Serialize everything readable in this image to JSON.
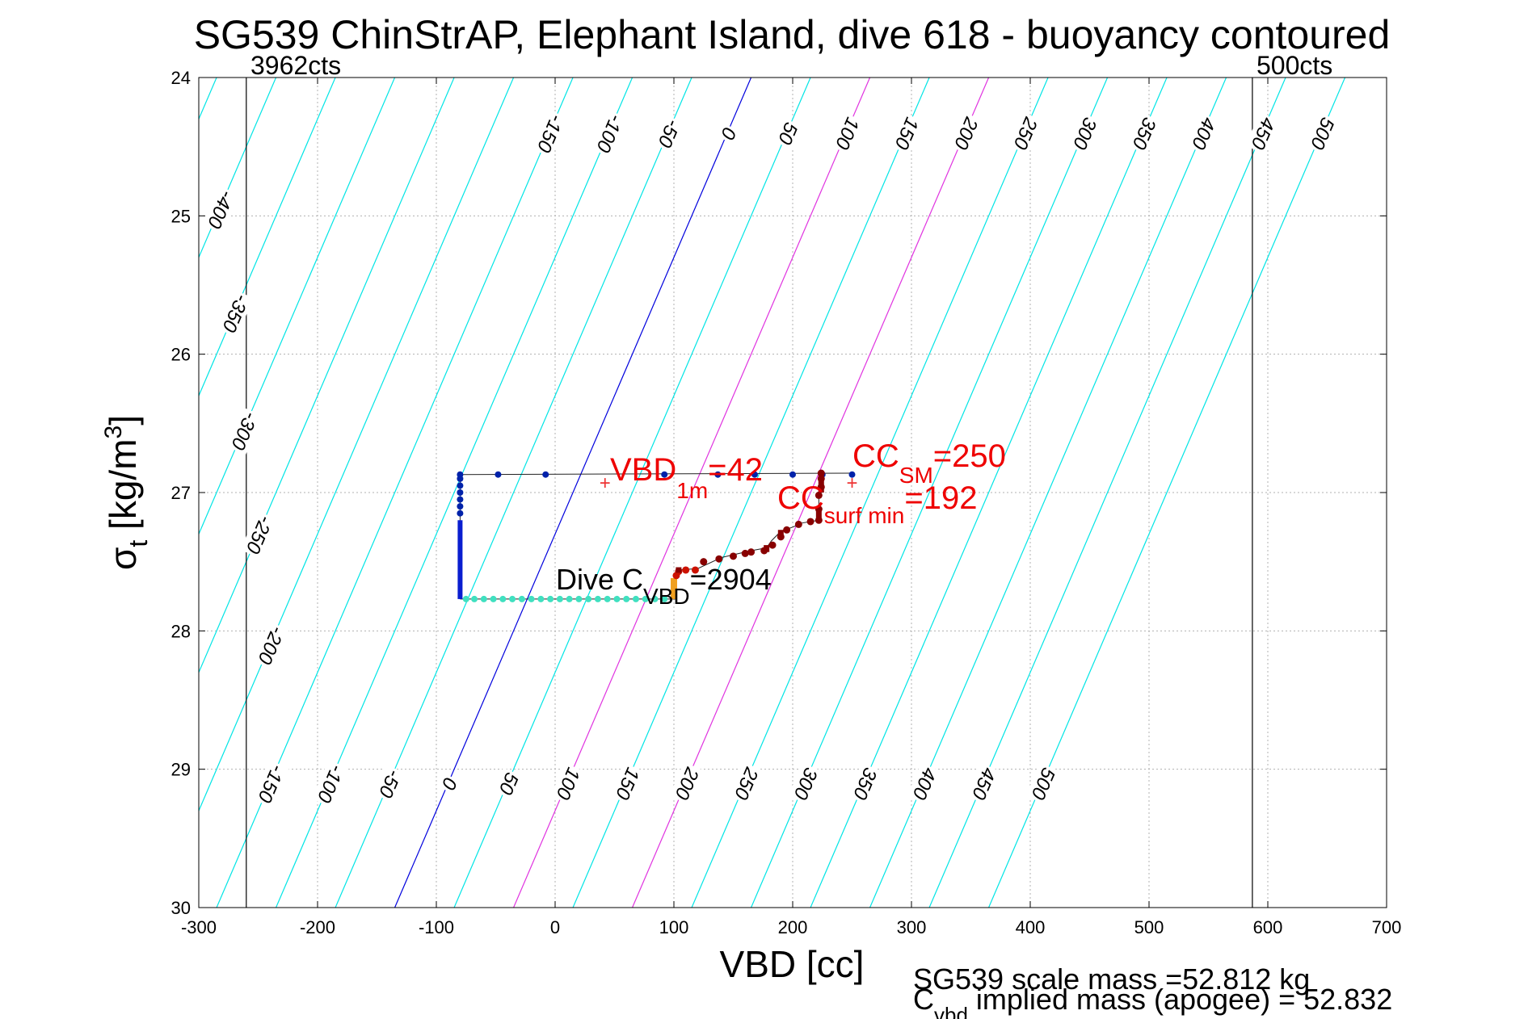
{
  "chart_data": {
    "type": "scatter",
    "title": "SG539 ChinStrAP, Elephant Island, dive 618 - buoyancy contoured",
    "xlabel": "VBD [cc]",
    "ylabel": {
      "main": "σ",
      "sub": "t",
      "unit": " [kg/m",
      "exp": "3",
      "close": "]"
    },
    "xlim": [
      -300,
      700
    ],
    "ylim": [
      24,
      30
    ],
    "y_reversed": true,
    "grid": true,
    "x_ticks": [
      -300,
      -200,
      -100,
      0,
      100,
      200,
      300,
      400,
      500,
      600,
      700
    ],
    "y_ticks": [
      24,
      25,
      26,
      27,
      28,
      29,
      30
    ],
    "count_lines": [
      {
        "label": "3962cts",
        "x": -260
      },
      {
        "label": "500cts",
        "x": 587
      }
    ],
    "contours": {
      "levels": [
        -450,
        -400,
        -350,
        -300,
        -250,
        -200,
        -150,
        -100,
        -50,
        0,
        50,
        100,
        150,
        200,
        250,
        300,
        350,
        400,
        450,
        500
      ],
      "zero_at_sigma24": 165,
      "slope_cc_per_sigma": 50,
      "colors": {
        "default": "#00e5e5",
        "zero": "#0000dd",
        "highlight": "#e033e0"
      },
      "highlight_levels": [
        100,
        200
      ],
      "top_labels": [
        -400,
        -350,
        -300,
        -250,
        -200,
        -150,
        -100,
        -50,
        0,
        50,
        100,
        150,
        200,
        250,
        300,
        350,
        400,
        450,
        500
      ],
      "bottom_labels": [
        -150,
        -100,
        -50,
        0,
        50,
        100,
        150,
        200,
        250,
        300,
        350,
        400,
        450,
        500
      ]
    },
    "dive_trace": {
      "top_path": [
        [
          -80,
          26.87
        ],
        [
          250,
          26.86
        ]
      ],
      "top_points": [
        -80,
        -48,
        -8,
        92,
        137,
        168,
        200,
        225,
        250
      ],
      "descent": {
        "x": -80,
        "y_start": 26.87,
        "y_end": 27.77
      },
      "bottom_path": [
        [
          -80,
          27.77
        ],
        [
          102,
          27.77
        ]
      ],
      "bottom_points": [
        -75,
        -68,
        -60,
        -52,
        -44,
        -36,
        -28,
        -20,
        -12,
        -4,
        4,
        12,
        20,
        28,
        36,
        44,
        52,
        60,
        68,
        76,
        84,
        92
      ],
      "ascent": [
        [
          102,
          27.77
        ],
        [
          102,
          27.56
        ],
        [
          120,
          27.55
        ],
        [
          140,
          27.47
        ],
        [
          155,
          27.44
        ],
        [
          165,
          27.42
        ],
        [
          178,
          27.4
        ],
        [
          182,
          27.35
        ],
        [
          190,
          27.28
        ],
        [
          200,
          27.25
        ],
        [
          208,
          27.22
        ],
        [
          222,
          27.2
        ],
        [
          222,
          27.05
        ],
        [
          224,
          26.85
        ]
      ],
      "ascent_points": [
        [
          102,
          27.6
        ],
        [
          104,
          27.57
        ],
        [
          110,
          27.56
        ],
        [
          118,
          27.56
        ],
        [
          125,
          27.5
        ],
        [
          138,
          27.48
        ],
        [
          150,
          27.46
        ],
        [
          160,
          27.44
        ],
        [
          165,
          27.43
        ],
        [
          176,
          27.42
        ],
        [
          183,
          27.38
        ],
        [
          190,
          27.32
        ],
        [
          195,
          27.27
        ],
        [
          205,
          27.23
        ],
        [
          215,
          27.21
        ],
        [
          222,
          27.2
        ],
        [
          222,
          27.12
        ],
        [
          222,
          27.02
        ],
        [
          224,
          26.96
        ],
        [
          224,
          26.9
        ],
        [
          224,
          26.86
        ]
      ],
      "colors": {
        "top": "#0022aa",
        "descent": "#0a1ed0",
        "bottom": "#40e0c0",
        "ascent": "#cc1100",
        "ascent_dark": "#880000",
        "trace_line": "#222222"
      }
    },
    "markers": [
      {
        "label": "VBD 1m",
        "x": 42,
        "y": 26.93
      },
      {
        "label": "CC SM",
        "x": 250,
        "y": 26.93
      }
    ],
    "annotations": {
      "vbd1m": {
        "main": "VBD",
        "sub": "1m",
        "value": "=42"
      },
      "cc_sm": {
        "main": "CC",
        "sub": "SM",
        "value": "=250"
      },
      "cc_surf": {
        "main": "CC",
        "sub": "surf min",
        "value": "=192"
      },
      "dive_c": {
        "main": "Dive C",
        "sub": "VBD",
        "value": "=2904"
      }
    },
    "footer": {
      "line1": "SG539 scale mass =52.812 kg",
      "line2_main": "C",
      "line2_sub": "vbd",
      "line2_rest": " implied mass (apogee) = 52.832"
    }
  }
}
